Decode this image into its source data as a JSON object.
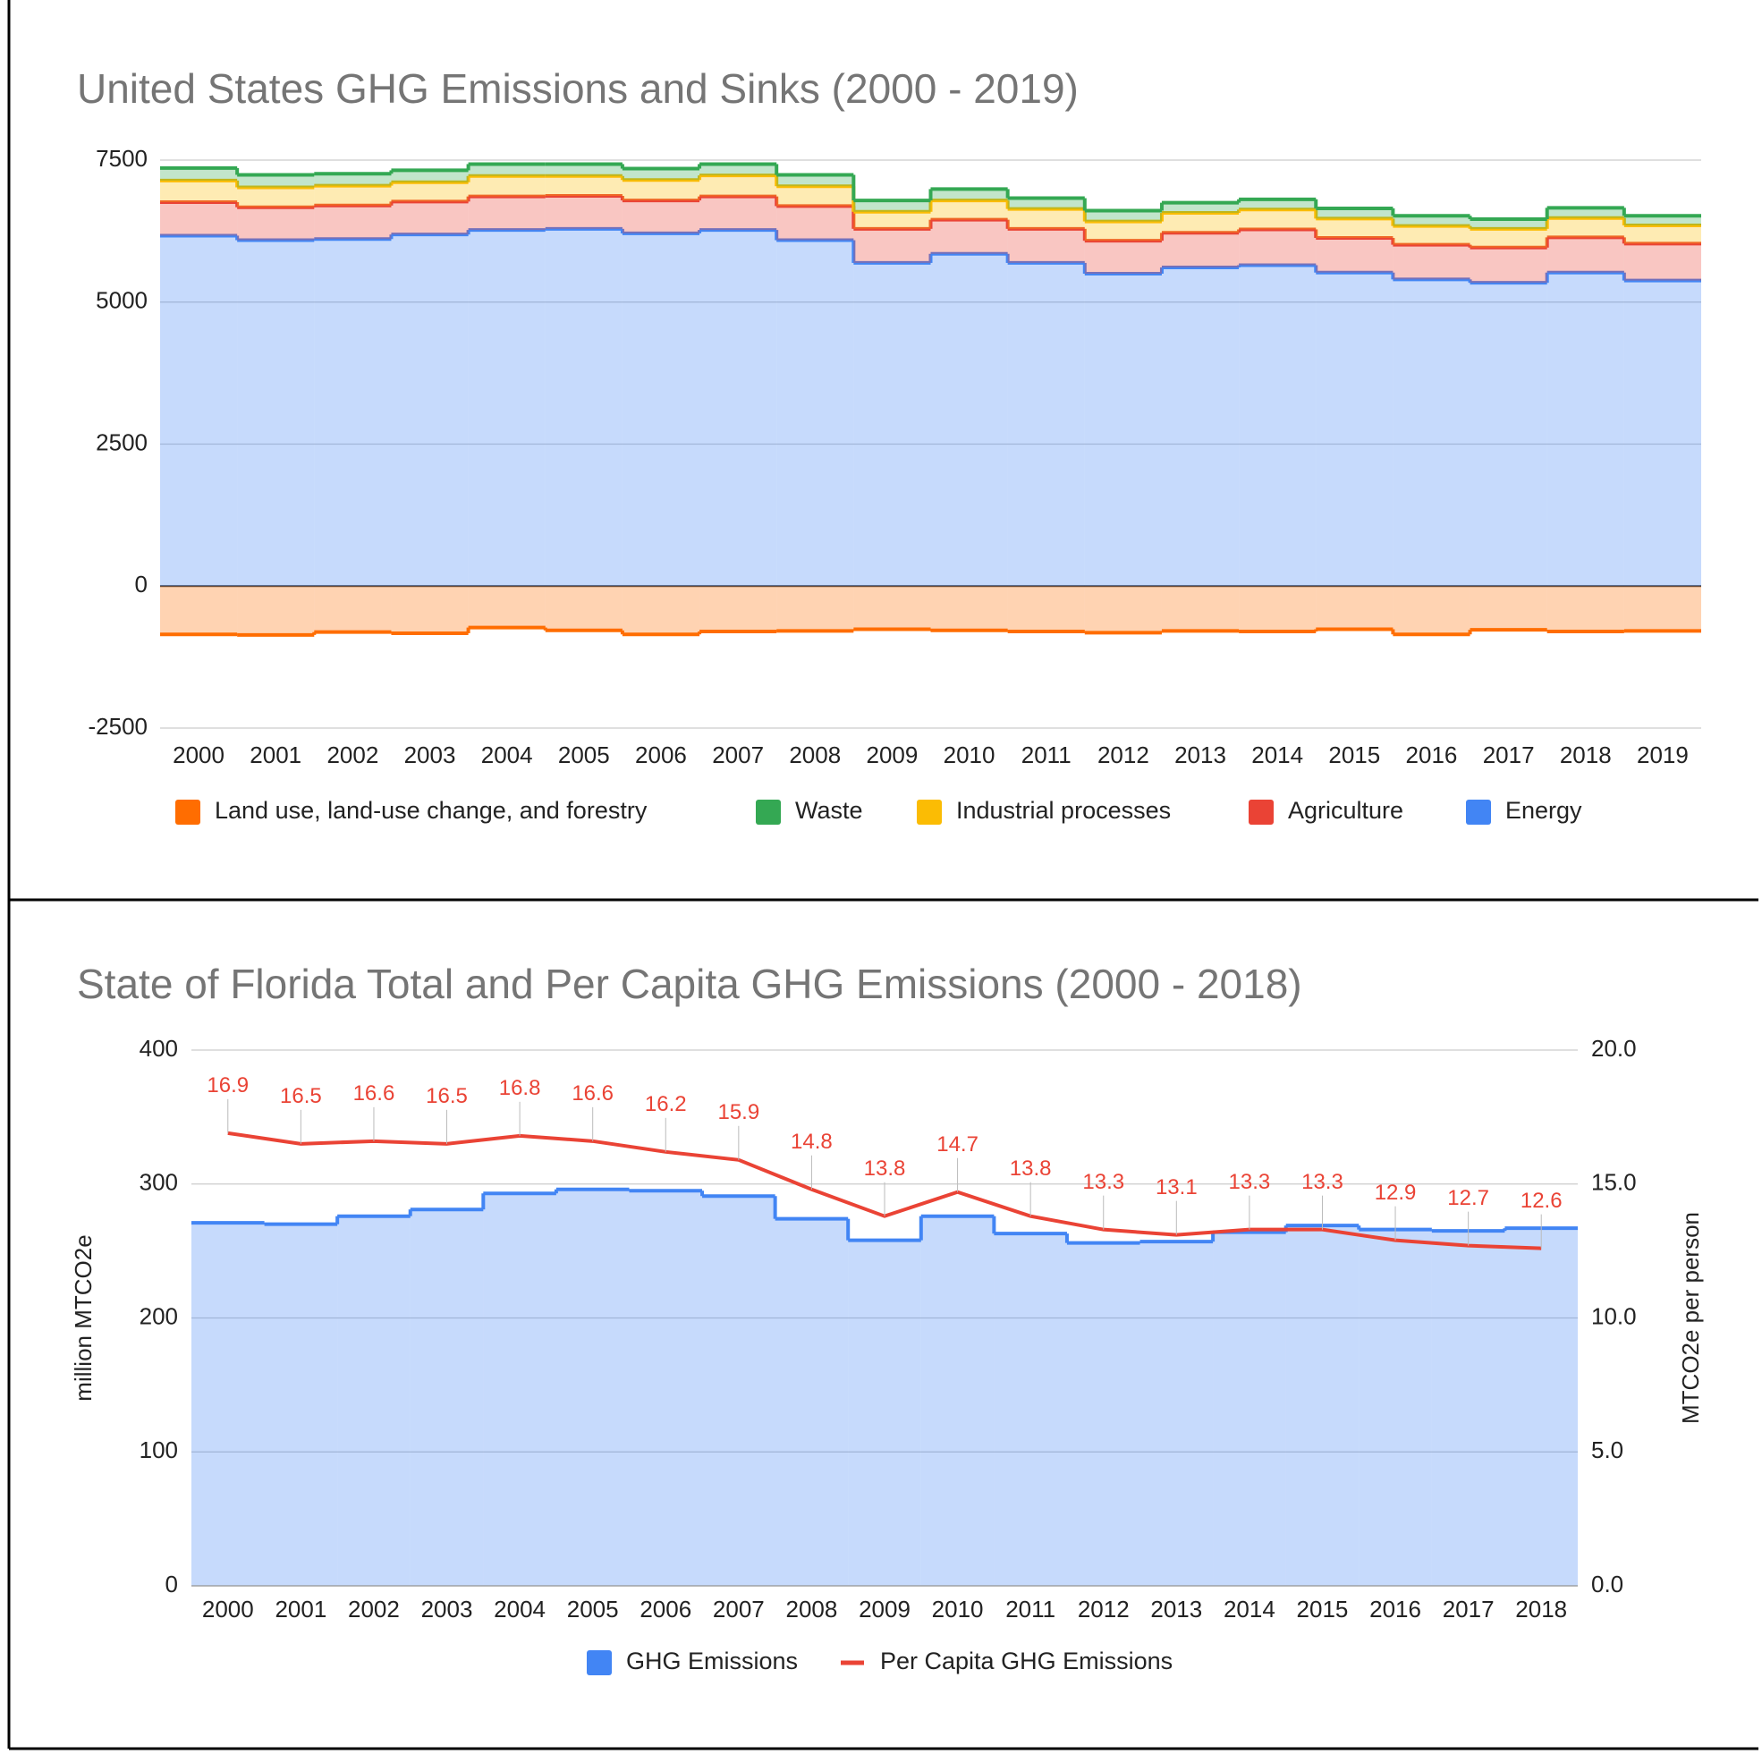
{
  "chart_data": [
    {
      "type": "area",
      "stacked": true,
      "stepped": true,
      "title": "United States GHG Emissions and Sinks (2000 - 2019)",
      "categories": [
        "2000",
        "2001",
        "2002",
        "2003",
        "2004",
        "2005",
        "2006",
        "2007",
        "2008",
        "2009",
        "2010",
        "2011",
        "2012",
        "2013",
        "2014",
        "2015",
        "2016",
        "2017",
        "2018",
        "2019"
      ],
      "series": [
        {
          "name": "Land use, land-use change, and forestry",
          "color": "#ff6d01",
          "values": [
            -850,
            -860,
            -810,
            -830,
            -730,
            -780,
            -850,
            -800,
            -790,
            -760,
            -780,
            -800,
            -820,
            -790,
            -800,
            -760,
            -850,
            -770,
            -800,
            -790
          ]
        },
        {
          "name": "Waste",
          "color": "#34a853",
          "values": [
            220,
            220,
            210,
            210,
            210,
            210,
            200,
            200,
            200,
            200,
            200,
            190,
            190,
            180,
            180,
            180,
            180,
            170,
            180,
            170
          ]
        },
        {
          "name": "Industrial processes",
          "color": "#fbbc04",
          "values": [
            380,
            350,
            350,
            340,
            360,
            350,
            360,
            370,
            350,
            300,
            340,
            350,
            340,
            350,
            350,
            340,
            330,
            330,
            340,
            320
          ]
        },
        {
          "name": "Agriculture",
          "color": "#ea4335",
          "values": [
            590,
            580,
            590,
            580,
            590,
            580,
            580,
            590,
            600,
            600,
            600,
            600,
            580,
            610,
            630,
            610,
            610,
            620,
            620,
            650
          ]
        },
        {
          "name": "Energy",
          "color": "#4285f4",
          "values": [
            6170,
            6090,
            6110,
            6190,
            6270,
            6290,
            6210,
            6270,
            6090,
            5690,
            5850,
            5690,
            5500,
            5610,
            5650,
            5520,
            5400,
            5340,
            5520,
            5380
          ]
        }
      ],
      "ylim": [
        -2500,
        7500
      ],
      "yticks": [
        -2500,
        0,
        2500,
        5000,
        7500
      ],
      "grid": true,
      "legend": "bottom"
    },
    {
      "type": "combo",
      "title": "State of Florida Total and Per Capita GHG Emissions (2000 - 2018)",
      "y_label": "million MTCO2e",
      "y2_label": "MTCO2e per person",
      "categories": [
        "2000",
        "2001",
        "2002",
        "2003",
        "2004",
        "2005",
        "2006",
        "2007",
        "2008",
        "2009",
        "2010",
        "2011",
        "2012",
        "2013",
        "2014",
        "2015",
        "2016",
        "2017",
        "2018"
      ],
      "series": [
        {
          "name": "GHG Emissions",
          "type": "area",
          "stepped": true,
          "color": "#4285f4",
          "values": [
            271,
            270,
            276,
            281,
            293,
            296,
            295,
            291,
            274,
            258,
            276,
            263,
            256,
            257,
            264,
            269,
            266,
            265,
            267
          ]
        },
        {
          "name": "Per Capita GHG Emissions",
          "type": "line",
          "axis": "y2",
          "color": "#ea4335",
          "data_labels": true,
          "values": [
            16.9,
            16.5,
            16.6,
            16.5,
            16.8,
            16.6,
            16.2,
            15.9,
            14.8,
            13.8,
            14.7,
            13.8,
            13.3,
            13.1,
            13.3,
            13.3,
            12.9,
            12.7,
            12.6
          ]
        }
      ],
      "ylim": [
        0,
        400
      ],
      "yticks": [
        0,
        100,
        200,
        300,
        400
      ],
      "y2lim": [
        0,
        20
      ],
      "y2ticks": [
        {
          "value": 0,
          "label": "0.0"
        },
        {
          "value": 5,
          "label": "5.0"
        },
        {
          "value": 10,
          "label": "10.0"
        },
        {
          "value": 15,
          "label": "15.0"
        },
        {
          "value": 20,
          "label": "20.0"
        }
      ],
      "grid": true,
      "legend": "bottom"
    }
  ]
}
